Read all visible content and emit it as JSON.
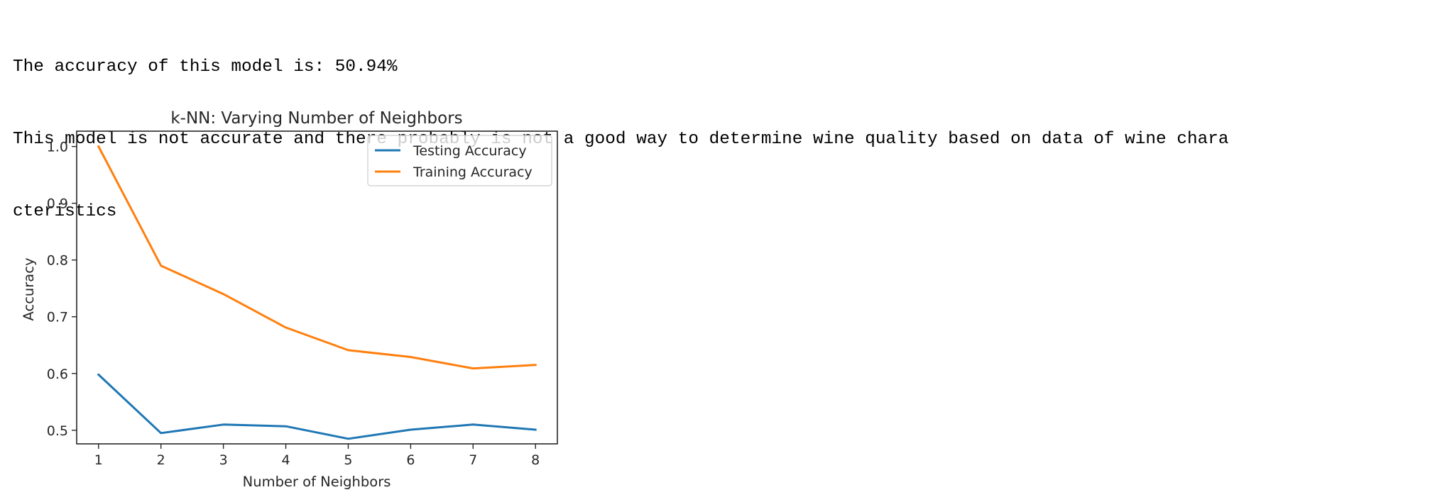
{
  "output": {
    "line1": "The accuracy of this model is: 50.94%",
    "line2": "This model is not accurate and there probably is not a good way to determine wine quality based on data of wine chara",
    "line3": "cteristics"
  },
  "chart_data": {
    "type": "line",
    "title": "k-NN: Varying Number of Neighbors",
    "xlabel": "Number of Neighbors",
    "ylabel": "Accuracy",
    "x": [
      1,
      2,
      3,
      4,
      5,
      6,
      7,
      8
    ],
    "xticks": [
      "1",
      "2",
      "3",
      "4",
      "5",
      "6",
      "7",
      "8"
    ],
    "yticks": [
      "0.5",
      "0.6",
      "0.7",
      "0.8",
      "0.9",
      "1.0"
    ],
    "xlim": [
      0.65,
      8.35
    ],
    "ylim": [
      0.476,
      1.027
    ],
    "grid": false,
    "legend_position": "top-right",
    "series": [
      {
        "name": "Testing Accuracy",
        "color": "#1f77b4",
        "values": [
          0.598,
          0.495,
          0.51,
          0.507,
          0.485,
          0.501,
          0.51,
          0.501
        ]
      },
      {
        "name": "Training Accuracy",
        "color": "#ff7f0e",
        "values": [
          1.0,
          0.79,
          0.74,
          0.681,
          0.641,
          0.629,
          0.609,
          0.615
        ]
      }
    ]
  }
}
